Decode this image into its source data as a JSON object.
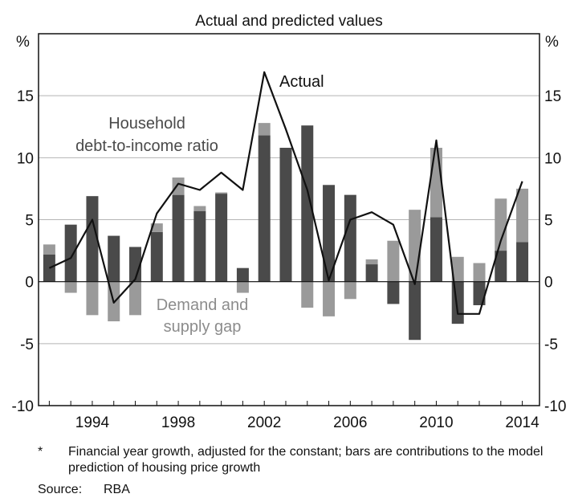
{
  "chart_data": {
    "type": "bar",
    "title": "Actual and predicted values",
    "y_unit": "%",
    "ylim": [
      -10,
      20
    ],
    "yticks": [
      -10,
      -5,
      0,
      5,
      10,
      15
    ],
    "x_range": [
      1991.5,
      2014.8
    ],
    "xticks": [
      1994,
      1998,
      2002,
      2006,
      2010,
      2014
    ],
    "grid": true,
    "x": [
      1992,
      1993,
      1994,
      1995,
      1996,
      1997,
      1998,
      1999,
      2000,
      2001,
      2002,
      2003,
      2004,
      2005,
      2006,
      2007,
      2008,
      2009,
      2010,
      2011,
      2012,
      2013,
      2014
    ],
    "series": [
      {
        "name": "Household debt-to-income ratio",
        "kind": "stacked-bar",
        "color": "#4a4a4a",
        "values": [
          2.2,
          4.6,
          6.9,
          3.7,
          2.8,
          4.0,
          7.0,
          5.7,
          7.1,
          1.1,
          11.8,
          10.8,
          12.6,
          7.8,
          7.0,
          1.4,
          -1.8,
          -4.7,
          5.2,
          -3.4,
          -1.9,
          2.5,
          3.2
        ]
      },
      {
        "name": "Demand and supply gap",
        "kind": "stacked-bar",
        "color": "#9a9a9a",
        "values": [
          0.8,
          -0.9,
          -2.7,
          -3.2,
          -2.7,
          0.7,
          1.4,
          0.4,
          0.1,
          -0.9,
          1.0,
          0.0,
          -2.1,
          -2.8,
          -1.4,
          0.4,
          3.3,
          5.8,
          5.6,
          2.0,
          1.5,
          4.2,
          4.3
        ]
      },
      {
        "name": "Actual",
        "kind": "line",
        "color": "#111111",
        "values": [
          1.1,
          1.9,
          5.0,
          -1.7,
          0.2,
          5.5,
          7.9,
          7.4,
          8.8,
          7.4,
          16.9,
          12.3,
          7.4,
          0.1,
          5.0,
          5.6,
          4.6,
          -0.2,
          11.4,
          -2.6,
          -2.6,
          3.3,
          8.1
        ]
      }
    ],
    "annotations": [
      {
        "text": "Actual",
        "color": "#111111"
      },
      {
        "text": "Household",
        "color": "#4a4a4a"
      },
      {
        "text": "debt-to-income ratio",
        "color": "#4a4a4a"
      },
      {
        "text": "Demand and",
        "color": "#8c8c8c"
      },
      {
        "text": "supply gap",
        "color": "#8c8c8c"
      }
    ]
  },
  "footnote": {
    "marker": "*",
    "text": "Financial year growth, adjusted for the constant; bars are contributions to the model prediction of housing price growth"
  },
  "source": {
    "label": "Source:",
    "value": "RBA"
  }
}
